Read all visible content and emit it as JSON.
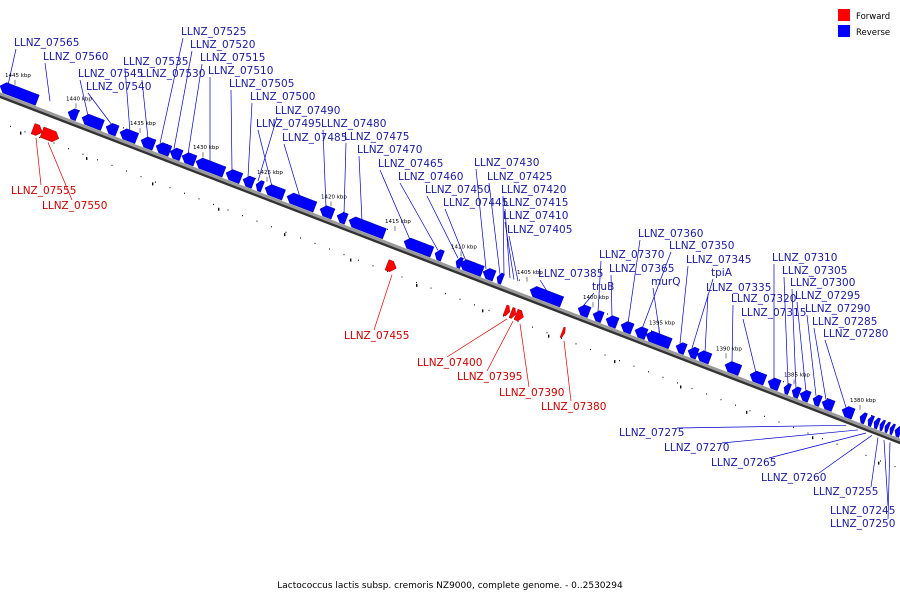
{
  "legend": {
    "forward": {
      "label": "Forward",
      "color": "#ff0000"
    },
    "reverse": {
      "label": "Reverse",
      "color": "#0000ff"
    }
  },
  "caption": "Lactococcus lactis subsp. cremoris NZ9000, complete genome. - 0..2530294",
  "colors": {
    "backbone": "#9a9a9a",
    "backbone_edge": "#333333",
    "forward_label": "#cc0000",
    "reverse_label": "#1a1aa0",
    "leader_forward": "#dd0000",
    "leader_reverse": "#0000cc"
  },
  "ticks": [
    "1445 kbp",
    "1440 kbp",
    "1435 kbp",
    "1430 kbp",
    "1425 kbp",
    "1420 kbp",
    "1415 kbp",
    "1410 kbp",
    "1405 kbp",
    "1400 kbp",
    "1395 kbp",
    "1390 kbp",
    "1385 kbp",
    "1380 kbp"
  ],
  "genes_reverse": [
    "LLNZ_07565",
    "LLNZ_07560",
    "LLNZ_07545",
    "LLNZ_07540",
    "LLNZ_07535",
    "LLNZ_07530",
    "LLNZ_07525",
    "LLNZ_07520",
    "LLNZ_07515",
    "LLNZ_07510",
    "LLNZ_07505",
    "LLNZ_07500",
    "LLNZ_07490",
    "LLNZ_07495",
    "LLNZ_07485",
    "LLNZ_07480",
    "LLNZ_07475",
    "LLNZ_07470",
    "LLNZ_07465",
    "LLNZ_07460",
    "LLNZ_07450",
    "LLNZ_07445",
    "LLNZ_07430",
    "LLNZ_07425",
    "LLNZ_07420",
    "LLNZ_07415",
    "LLNZ_07410",
    "LLNZ_07405",
    "LLNZ_07385",
    "truB",
    "LLNZ_07370",
    "LLNZ_07365",
    "LLNZ_07360",
    "LLNZ_07350",
    "murQ",
    "LLNZ_07345",
    "tpiA",
    "LLNZ_07335",
    "LLNZ_07320",
    "LLNZ_07315",
    "LLNZ_07310",
    "LLNZ_07305",
    "LLNZ_07300",
    "LLNZ_07295",
    "LLNZ_07290",
    "LLNZ_07285",
    "LLNZ_07280",
    "LLNZ_07275",
    "LLNZ_07270",
    "LLNZ_07265",
    "LLNZ_07260",
    "LLNZ_07255",
    "LLNZ_07245",
    "LLNZ_07250"
  ],
  "genes_forward": [
    "LLNZ_07555",
    "LLNZ_07550",
    "LLNZ_07455",
    "LLNZ_07400",
    "LLNZ_07395",
    "LLNZ_07390",
    "LLNZ_07380"
  ]
}
